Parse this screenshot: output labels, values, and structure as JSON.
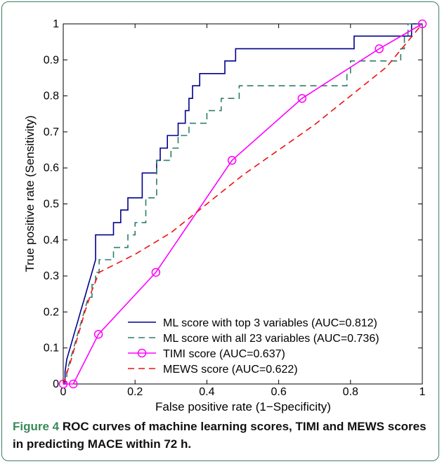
{
  "chart_data": {
    "type": "line",
    "xlabel": "False positive rate (1−Specificity)",
    "ylabel": "True positive rate (Sensitivity)",
    "xlim": [
      0,
      1
    ],
    "ylim": [
      0,
      1
    ],
    "x_ticks": [
      0,
      0.2,
      0.4,
      0.6,
      0.8,
      1
    ],
    "x_tick_labels": [
      "0",
      "0.2",
      "0.4",
      "0.6",
      "0.8",
      "1"
    ],
    "y_ticks": [
      0,
      0.1,
      0.2,
      0.3,
      0.4,
      0.5,
      0.6,
      0.7,
      0.8,
      0.9,
      1
    ],
    "y_tick_labels": [
      "0",
      "0.1",
      "0.2",
      "0.3",
      "0.4",
      "0.5",
      "0.6",
      "0.7",
      "0.8",
      "0.9",
      "1"
    ],
    "grid": false,
    "legend_position": "bottom-right",
    "series": [
      {
        "name": "ML score with top 3 variables (AUC=0.812)",
        "color": "#00008b",
        "style": "solid",
        "marker": "none",
        "points": [
          [
            0,
            0
          ],
          [
            0.005,
            0
          ],
          [
            0.005,
            0.034
          ],
          [
            0.01,
            0.069
          ],
          [
            0.02,
            0.103
          ],
          [
            0.03,
            0.138
          ],
          [
            0.04,
            0.172
          ],
          [
            0.05,
            0.207
          ],
          [
            0.06,
            0.241
          ],
          [
            0.07,
            0.276
          ],
          [
            0.08,
            0.31
          ],
          [
            0.09,
            0.345
          ],
          [
            0.09,
            0.379
          ],
          [
            0.09,
            0.414
          ],
          [
            0.1,
            0.414
          ],
          [
            0.14,
            0.414
          ],
          [
            0.14,
            0.448
          ],
          [
            0.16,
            0.448
          ],
          [
            0.16,
            0.483
          ],
          [
            0.18,
            0.483
          ],
          [
            0.18,
            0.517
          ],
          [
            0.22,
            0.517
          ],
          [
            0.22,
            0.552
          ],
          [
            0.22,
            0.586
          ],
          [
            0.26,
            0.586
          ],
          [
            0.26,
            0.621
          ],
          [
            0.27,
            0.621
          ],
          [
            0.27,
            0.655
          ],
          [
            0.29,
            0.655
          ],
          [
            0.29,
            0.69
          ],
          [
            0.32,
            0.69
          ],
          [
            0.32,
            0.724
          ],
          [
            0.34,
            0.724
          ],
          [
            0.34,
            0.759
          ],
          [
            0.35,
            0.759
          ],
          [
            0.35,
            0.793
          ],
          [
            0.36,
            0.793
          ],
          [
            0.36,
            0.828
          ],
          [
            0.38,
            0.828
          ],
          [
            0.38,
            0.862
          ],
          [
            0.45,
            0.862
          ],
          [
            0.45,
            0.897
          ],
          [
            0.48,
            0.897
          ],
          [
            0.48,
            0.931
          ],
          [
            0.81,
            0.931
          ],
          [
            0.81,
            0.966
          ],
          [
            0.97,
            0.966
          ],
          [
            0.97,
            1
          ],
          [
            1,
            1
          ]
        ]
      },
      {
        "name": "ML score with all 23 variables (AUC=0.736)",
        "color": "#2e7d6b",
        "style": "dashed",
        "marker": "none",
        "points": [
          [
            0,
            0
          ],
          [
            0.01,
            0
          ],
          [
            0.01,
            0.034
          ],
          [
            0.02,
            0.069
          ],
          [
            0.03,
            0.103
          ],
          [
            0.04,
            0.138
          ],
          [
            0.05,
            0.172
          ],
          [
            0.06,
            0.207
          ],
          [
            0.07,
            0.241
          ],
          [
            0.08,
            0.241
          ],
          [
            0.08,
            0.276
          ],
          [
            0.09,
            0.276
          ],
          [
            0.09,
            0.31
          ],
          [
            0.1,
            0.31
          ],
          [
            0.1,
            0.345
          ],
          [
            0.14,
            0.345
          ],
          [
            0.14,
            0.379
          ],
          [
            0.18,
            0.379
          ],
          [
            0.18,
            0.414
          ],
          [
            0.2,
            0.414
          ],
          [
            0.2,
            0.448
          ],
          [
            0.23,
            0.448
          ],
          [
            0.23,
            0.483
          ],
          [
            0.23,
            0.517
          ],
          [
            0.26,
            0.517
          ],
          [
            0.26,
            0.552
          ],
          [
            0.26,
            0.586
          ],
          [
            0.26,
            0.621
          ],
          [
            0.3,
            0.621
          ],
          [
            0.3,
            0.655
          ],
          [
            0.32,
            0.655
          ],
          [
            0.32,
            0.69
          ],
          [
            0.35,
            0.69
          ],
          [
            0.35,
            0.724
          ],
          [
            0.4,
            0.724
          ],
          [
            0.4,
            0.759
          ],
          [
            0.44,
            0.759
          ],
          [
            0.44,
            0.793
          ],
          [
            0.49,
            0.793
          ],
          [
            0.49,
            0.828
          ],
          [
            0.79,
            0.828
          ],
          [
            0.79,
            0.862
          ],
          [
            0.8,
            0.862
          ],
          [
            0.8,
            0.897
          ],
          [
            0.94,
            0.897
          ],
          [
            0.94,
            0.931
          ],
          [
            0.95,
            0.931
          ],
          [
            0.95,
            0.966
          ],
          [
            0.96,
            0.966
          ],
          [
            0.96,
            1
          ],
          [
            1,
            1
          ]
        ]
      },
      {
        "name": "TIMI score (AUC=0.637)",
        "color": "#ff00ff",
        "style": "solid",
        "marker": "circle",
        "points": [
          [
            0,
            0
          ],
          [
            0.028,
            0
          ],
          [
            0.098,
            0.138
          ],
          [
            0.258,
            0.31
          ],
          [
            0.47,
            0.621
          ],
          [
            0.665,
            0.793
          ],
          [
            0.88,
            0.931
          ],
          [
            1,
            1
          ]
        ]
      },
      {
        "name": "MEWS score (AUC=0.622)",
        "color": "#ee1111",
        "style": "dashed",
        "marker": "none",
        "points": [
          [
            0,
            0
          ],
          [
            0.02,
            0.06
          ],
          [
            0.04,
            0.13
          ],
          [
            0.06,
            0.2
          ],
          [
            0.08,
            0.26
          ],
          [
            0.1,
            0.31
          ],
          [
            0.2,
            0.36
          ],
          [
            0.3,
            0.42
          ],
          [
            0.4,
            0.5
          ],
          [
            0.5,
            0.58
          ],
          [
            0.6,
            0.65
          ],
          [
            0.7,
            0.72
          ],
          [
            0.8,
            0.8
          ],
          [
            0.9,
            0.88
          ],
          [
            0.95,
            0.94
          ],
          [
            1,
            1
          ]
        ]
      }
    ]
  },
  "caption": {
    "figure_label": "Figure 4",
    "text": "ROC curves of machine learning scores, TIMI and MEWS scores in predicting MACE within 72 h."
  }
}
